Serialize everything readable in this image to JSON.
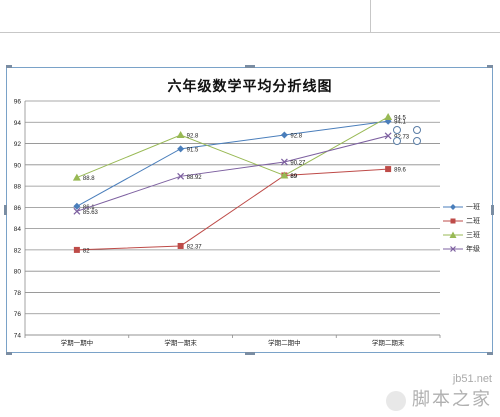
{
  "chart_data": {
    "type": "line",
    "title": "六年级数学平均分折线图",
    "categories": [
      "学期一期中",
      "学期一期末",
      "学期二期中",
      "学期二期末"
    ],
    "ylim": [
      74,
      96
    ],
    "yticks": [
      74,
      76,
      78,
      80,
      82,
      84,
      86,
      88,
      90,
      92,
      94,
      96
    ],
    "grid": true,
    "legend_position": "right",
    "series": [
      {
        "name": "一班",
        "values": [
          86.1,
          91.5,
          92.8,
          94.1
        ],
        "labels": [
          "86.1",
          "91.5",
          "92.8",
          "94.1"
        ],
        "color": "#4a7ebb",
        "marker": "diamond"
      },
      {
        "name": "二班",
        "values": [
          82,
          82.37,
          89,
          89.6
        ],
        "labels": [
          "82",
          "82.37",
          "89",
          "89.6"
        ],
        "color": "#be4b48",
        "marker": "square"
      },
      {
        "name": "三班",
        "values": [
          88.8,
          92.8,
          89,
          94.5
        ],
        "labels": [
          "88.8",
          "92.8",
          "89",
          "94.5"
        ],
        "color": "#98b954",
        "marker": "triangle"
      },
      {
        "name": "年级",
        "values": [
          85.63,
          88.92,
          90.27,
          92.73
        ],
        "labels": [
          "85.63",
          "88.92",
          "90.27",
          "92.73"
        ],
        "color": "#7d60a0",
        "marker": "x"
      }
    ]
  },
  "watermark": {
    "site": "jb51.net",
    "name": "脚本之家"
  }
}
